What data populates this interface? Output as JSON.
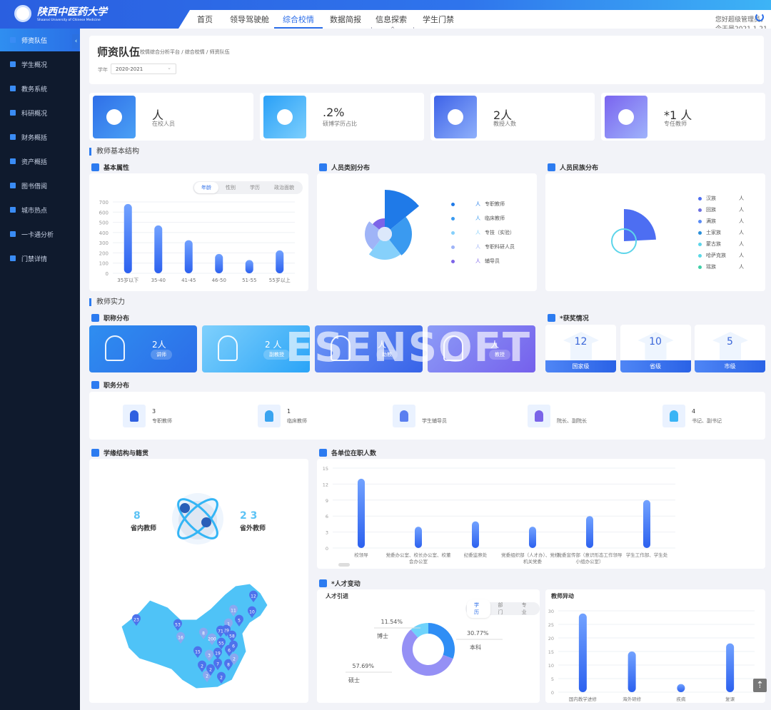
{
  "header": {
    "logo_cn": "陕西中医药大学",
    "logo_en": "Shaanxi University of Chinese Medicine",
    "nav": [
      "首页",
      "领导驾驶舱",
      "综合校情",
      "数据简报",
      "信息探索",
      "学生门禁"
    ],
    "active_nav": 2,
    "greeting": "您好超级管理员，今天是2021.1.21",
    "power_icon": "power-icon"
  },
  "sidebar": {
    "items": [
      "师资队伍",
      "学生概况",
      "教务系统",
      "科研概况",
      "财务概括",
      "资产概括",
      "图书借阅",
      "城市热点",
      "一卡通分析",
      "门禁详情"
    ],
    "active": 0
  },
  "page": {
    "title": "师资队伍",
    "breadcrumb": [
      "校情综合分析平台",
      "综合校情",
      "师资队伍"
    ],
    "year_label": "学年",
    "year_value": "2020-2021"
  },
  "stats": [
    {
      "value": "人",
      "label": "在校人员"
    },
    {
      "value": ".2%",
      "label": "硕博学历占比"
    },
    {
      "value": "2人",
      "label": "教授人数"
    },
    {
      "value": "*1  人",
      "label": "专任教师"
    }
  ],
  "sections": {
    "basic": "教师基本结构",
    "strength": "教师实力"
  },
  "basic_attr": {
    "title": "基本属性",
    "tabs": [
      "年龄",
      "性别",
      "学历",
      "政治面貌"
    ],
    "active_tab": 0
  },
  "category": {
    "title": "人员类别分布",
    "legend": [
      {
        "label": "专职教师",
        "value": "人",
        "color": "#1f7ae8"
      },
      {
        "label": "临床教师",
        "value": "人",
        "color": "#3a9af0"
      },
      {
        "label": "专技（实验）",
        "value": "人",
        "color": "#86d0fb"
      },
      {
        "label": "专职科研人员",
        "value": "人",
        "color": "#9fb4f7"
      },
      {
        "label": "辅导员",
        "value": "人",
        "color": "#7d64e8"
      }
    ]
  },
  "ethnic": {
    "title": "人员民族分布",
    "legend": [
      {
        "label": "汉族",
        "value": "人",
        "color": "#4d6ef2"
      },
      {
        "label": "回族",
        "value": "人",
        "color": "#6c6fe0"
      },
      {
        "label": "满族",
        "value": "人",
        "color": "#5a8cf5"
      },
      {
        "label": "土家族",
        "value": "人",
        "color": "#2b90d9"
      },
      {
        "label": "蒙古族",
        "value": "人",
        "color": "#5dd5ea"
      },
      {
        "label": "哈萨克族",
        "value": "人",
        "color": "#5ad8e6"
      },
      {
        "label": "瑶族",
        "value": "人",
        "color": "#3fcfa8"
      }
    ]
  },
  "titles": {
    "title": "职称分布",
    "cards": [
      {
        "value": "2人",
        "label": "讲师"
      },
      {
        "value": "2 人",
        "label": "副教授"
      },
      {
        "value": "人",
        "label": "助教"
      },
      {
        "value": "人",
        "label": "教授"
      }
    ]
  },
  "awards": {
    "title": "*获奖情况",
    "cards": [
      {
        "value": "12",
        "label": "国家级"
      },
      {
        "value": "10",
        "label": "省级"
      },
      {
        "value": "5",
        "label": "市级"
      }
    ]
  },
  "duties": {
    "title": "职务分布",
    "items": [
      {
        "value": "3",
        "label": "专职教师"
      },
      {
        "value": "1",
        "label": "临床教师"
      },
      {
        "value": "",
        "label": "学生辅导员"
      },
      {
        "value": "",
        "label": "院长、副院长"
      },
      {
        "value": "4",
        "label": "书记、副书记"
      }
    ]
  },
  "origin": {
    "title": "学缘结构与籍贯",
    "inner_value": "8",
    "inner_label": "省内教师",
    "outer_value": "2 3",
    "outer_label": "省外教师",
    "map_pins": [
      23,
      53,
      16,
      15,
      12,
      11,
      10,
      5,
      1,
      29,
      71,
      200,
      58,
      55,
      8,
      6,
      6,
      3,
      19,
      2,
      2,
      7,
      8,
      2,
      2,
      2
    ]
  },
  "watermark": "ESENSOFT",
  "chart_data": [
    {
      "type": "bar",
      "title": "基本属性",
      "categories": [
        "35岁以下",
        "35-40",
        "41-45",
        "46-50",
        "51-55",
        "55岁以上"
      ],
      "values": [
        680,
        470,
        325,
        190,
        130,
        225
      ],
      "ylim": [
        0,
        700
      ],
      "yticks": [
        0,
        100,
        200,
        300,
        400,
        500,
        600,
        700
      ],
      "grid": true
    },
    {
      "type": "bar",
      "title": "各单位在职人数",
      "categories": [
        "校领导",
        "党委办公室、校长办公室、校董会办公室",
        "纪委监察处",
        "党委组织部（人才办）、党校、机关党委",
        "党委宣传部（意识形态工作领导小组办公室）",
        "学生工作部、学生处"
      ],
      "values": [
        13,
        4,
        5,
        4,
        6,
        9
      ],
      "ylim": [
        0,
        15
      ],
      "yticks": [
        0,
        3,
        6,
        9,
        12,
        15
      ],
      "grid": true
    },
    {
      "type": "pie",
      "title": "人才引进",
      "subtitle": "*人才变动",
      "tabs": [
        "学历",
        "部门",
        "专业"
      ],
      "active_tab": 0,
      "slices": [
        {
          "label": "本科",
          "value": 30.77,
          "display": "30.77%",
          "color": "#2f8ef5"
        },
        {
          "label": "硕士",
          "value": 57.69,
          "display": "57.69%",
          "color": "#9590f5"
        },
        {
          "label": "博士",
          "value": 11.54,
          "display": "11.54%",
          "color": "#6fd3fb"
        }
      ]
    },
    {
      "type": "bar",
      "title": "教师异动",
      "categories": [
        "国内教学进修",
        "海外研修",
        "疾病",
        "复课"
      ],
      "values": [
        29,
        15,
        3,
        18
      ],
      "ylim": [
        0,
        30
      ],
      "yticks": [
        0,
        5,
        10,
        15,
        20,
        25,
        30
      ],
      "grid": true
    }
  ]
}
